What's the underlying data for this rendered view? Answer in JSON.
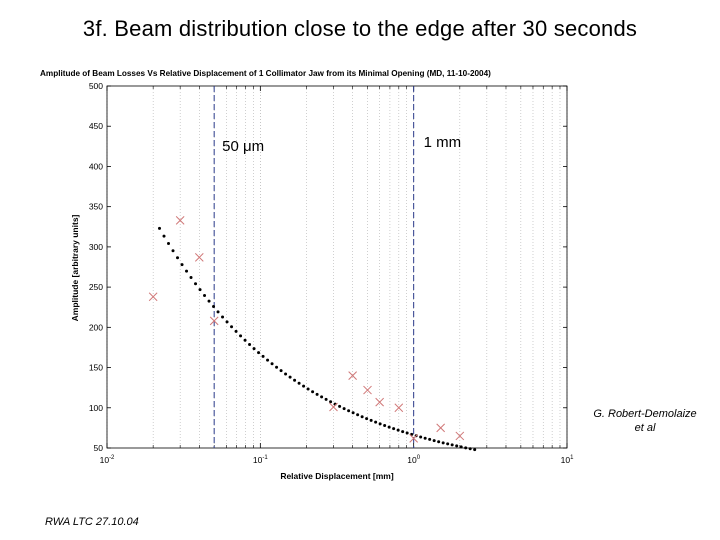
{
  "slide": {
    "title": "3f. Beam distribution close to the edge after 30 seconds",
    "credit_line1": "G. Robert-Demolaize",
    "credit_line2": "et al",
    "footer": "RWA LTC 27.10.04"
  },
  "chart_data": {
    "type": "scatter",
    "title": "Amplitude of Beam Losses Vs Relative Displacement of 1 Collimator Jaw from its Minimal Opening (MD, 11-10-2004)",
    "xlabel": "Relative Displacement [mm]",
    "ylabel": "Amplitude [arbitrary units]",
    "xscale": "log",
    "xlim": [
      0.01,
      10
    ],
    "ylim": [
      50,
      500
    ],
    "x_ticks": [
      0.01,
      0.1,
      1,
      10
    ],
    "x_tick_labels": [
      {
        "base": "10",
        "exp": "-2"
      },
      {
        "base": "10",
        "exp": "-1"
      },
      {
        "base": "10",
        "exp": "0"
      },
      {
        "base": "10",
        "exp": "1"
      }
    ],
    "y_ticks": [
      50,
      100,
      150,
      200,
      250,
      300,
      350,
      400,
      450,
      500
    ],
    "grid": "vertical-dotted",
    "markers": [
      {
        "x": 0.05,
        "label": "50 μm"
      },
      {
        "x": 1.0,
        "label": "1 mm"
      }
    ],
    "series": [
      {
        "style": "markers-x",
        "color": "#d07878",
        "x": [
          0.02,
          0.03,
          0.04,
          0.05,
          0.3,
          0.4,
          0.5,
          0.6,
          0.8,
          1.0,
          1.5,
          2.0
        ],
        "y": [
          238,
          333,
          287,
          208,
          101,
          140,
          122,
          107,
          100,
          62,
          75,
          65
        ]
      },
      {
        "style": "dotted-fit",
        "color": "#000000",
        "x_range": [
          0.022,
          2.5
        ],
        "y_start": 323,
        "y_end": 48
      }
    ]
  }
}
